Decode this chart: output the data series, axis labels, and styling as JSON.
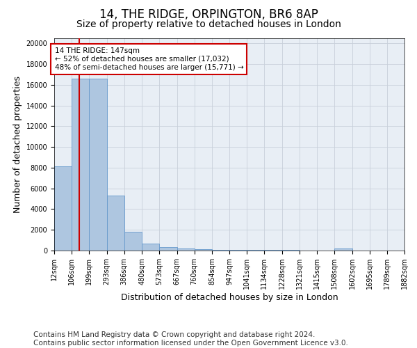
{
  "title": "14, THE RIDGE, ORPINGTON, BR6 8AP",
  "subtitle": "Size of property relative to detached houses in London",
  "xlabel": "Distribution of detached houses by size in London",
  "ylabel": "Number of detached properties",
  "bin_edges": [
    12,
    106,
    199,
    293,
    386,
    480,
    573,
    667,
    760,
    854,
    947,
    1041,
    1134,
    1228,
    1321,
    1415,
    1508,
    1602,
    1695,
    1789,
    1882
  ],
  "bar_heights": [
    8100,
    16600,
    16600,
    5300,
    1800,
    700,
    350,
    200,
    150,
    100,
    80,
    60,
    50,
    40,
    30,
    25,
    200,
    20,
    15,
    10
  ],
  "bar_color": "#aec6e0",
  "bar_edge_color": "#6699cc",
  "vline_x": 147,
  "vline_color": "#cc0000",
  "annotation_text": "14 THE RIDGE: 147sqm\n← 52% of detached houses are smaller (17,032)\n48% of semi-detached houses are larger (15,771) →",
  "annotation_box_color": "#ffffff",
  "annotation_box_edge": "#cc0000",
  "ylim": [
    0,
    20500
  ],
  "yticks": [
    0,
    2000,
    4000,
    6000,
    8000,
    10000,
    12000,
    14000,
    16000,
    18000,
    20000
  ],
  "tick_labels": [
    "12sqm",
    "106sqm",
    "199sqm",
    "293sqm",
    "386sqm",
    "480sqm",
    "573sqm",
    "667sqm",
    "760sqm",
    "854sqm",
    "947sqm",
    "1041sqm",
    "1134sqm",
    "1228sqm",
    "1321sqm",
    "1415sqm",
    "1508sqm",
    "1602sqm",
    "1695sqm",
    "1789sqm",
    "1882sqm"
  ],
  "footer_line1": "Contains HM Land Registry data © Crown copyright and database right 2024.",
  "footer_line2": "Contains public sector information licensed under the Open Government Licence v3.0.",
  "background_color": "#ffffff",
  "plot_bg_color": "#e8eef5",
  "grid_color": "#c8d0da",
  "title_fontsize": 12,
  "subtitle_fontsize": 10,
  "axis_label_fontsize": 9,
  "tick_fontsize": 7,
  "annotation_fontsize": 7.5,
  "footer_fontsize": 7.5
}
